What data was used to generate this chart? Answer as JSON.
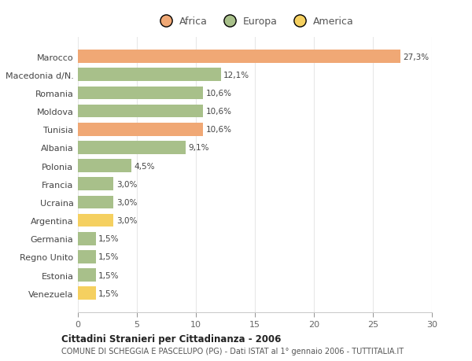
{
  "countries": [
    "Marocco",
    "Macedonia d/N.",
    "Romania",
    "Moldova",
    "Tunisia",
    "Albania",
    "Polonia",
    "Francia",
    "Ucraina",
    "Argentina",
    "Germania",
    "Regno Unito",
    "Estonia",
    "Venezuela"
  ],
  "values": [
    27.3,
    12.1,
    10.6,
    10.6,
    10.6,
    9.1,
    4.5,
    3.0,
    3.0,
    3.0,
    1.5,
    1.5,
    1.5,
    1.5
  ],
  "labels": [
    "27,3%",
    "12,1%",
    "10,6%",
    "10,6%",
    "10,6%",
    "9,1%",
    "4,5%",
    "3,0%",
    "3,0%",
    "3,0%",
    "1,5%",
    "1,5%",
    "1,5%",
    "1,5%"
  ],
  "colors": [
    "#f0a875",
    "#a8c08a",
    "#a8c08a",
    "#a8c08a",
    "#f0a875",
    "#a8c08a",
    "#a8c08a",
    "#a8c08a",
    "#a8c08a",
    "#f5d060",
    "#a8c08a",
    "#a8c08a",
    "#a8c08a",
    "#f5d060"
  ],
  "legend_labels": [
    "Africa",
    "Europa",
    "America"
  ],
  "legend_colors": [
    "#f0a875",
    "#a8c08a",
    "#f5d060"
  ],
  "title_bold": "Cittadini Stranieri per Cittadinanza - 2006",
  "subtitle": "COMUNE DI SCHEGGIA E PASCELUPO (PG) - Dati ISTAT al 1° gennaio 2006 - TUTTITALIA.IT",
  "xlim": [
    0,
    30
  ],
  "xticks": [
    0,
    5,
    10,
    15,
    20,
    25,
    30
  ],
  "bg_color": "#ffffff",
  "grid_color": "#e8e8e8",
  "bar_height": 0.72,
  "label_fontsize": 7.5,
  "tick_fontsize": 8.0
}
